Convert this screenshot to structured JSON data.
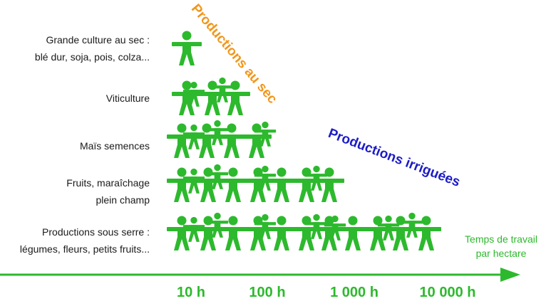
{
  "colors": {
    "green": "#2db92d",
    "orange": "#f2961b",
    "blue": "#1c1cc7"
  },
  "categories": [
    {
      "lines": [
        "Grande culture au sec :",
        "blé dur, soja, pois, colza..."
      ],
      "people": 1
    },
    {
      "lines": [
        "Viticulture"
      ],
      "people": 5
    },
    {
      "lines": [
        "Maïs semences"
      ],
      "people": 7
    },
    {
      "lines": [
        "Fruits, maraîchage",
        "plein champ"
      ],
      "people": 11
    },
    {
      "lines": [
        "Productions sous serre :",
        "légumes, fleurs, petits fruits..."
      ],
      "people": 17
    }
  ],
  "annotations": {
    "dry": "Productions au sec",
    "irrigated": "Productions irriguées"
  },
  "axis": {
    "label_lines": [
      "Temps de travail",
      "par hectare"
    ],
    "ticks": [
      "10 h",
      "100 h",
      "1 000 h",
      "10 000 h"
    ],
    "icon": "person-icon"
  }
}
